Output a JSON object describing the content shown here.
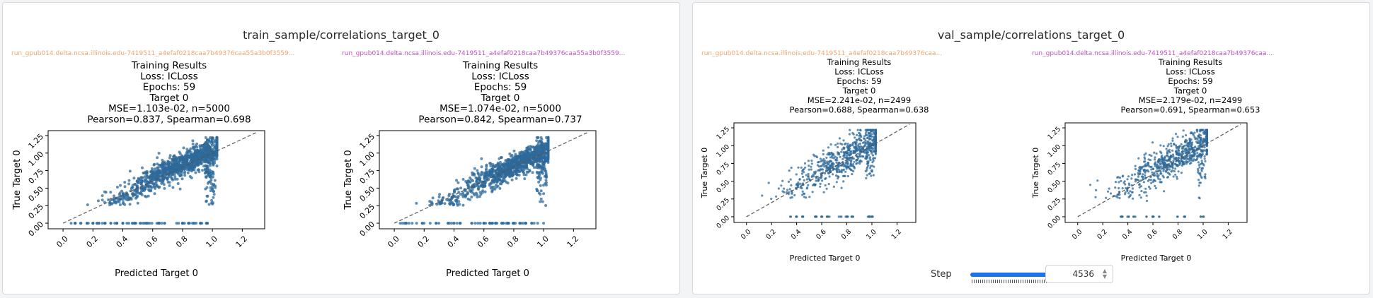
{
  "panels": [
    {
      "title": "train_sample/correlations_target_0",
      "plots": [
        {
          "run_name": "run_gpub014.delta.ncsa.illinois.edu-7419511_a4efaf0218caa7b49376caa55a3b0f3559...",
          "run_color": "#f5a36c",
          "title_lines": [
            "Training Results",
            "Loss: ICLoss",
            "Epochs: 59",
            "Target 0",
            "MSE=1.103e-02, n=5000",
            "Pearson=0.837, Spearman=0.698"
          ]
        },
        {
          "run_name": "run_gpub014.delta.ncsa.illinois.edu-7419511_a4efaf0218caa7b49376caa55a3b0f3559...",
          "run_color": "#c44fc4",
          "title_lines": [
            "Training Results",
            "Loss: ICLoss",
            "Epochs: 59",
            "Target 0",
            "MSE=1.074e-02, n=5000",
            "Pearson=0.842, Spearman=0.737"
          ]
        }
      ]
    },
    {
      "title": "val_sample/correlations_target_0",
      "plots": [
        {
          "run_name": "run_gpub014.delta.ncsa.illinois.edu-7419511_a4efaf0218caa7b49376caa...",
          "run_color": "#f5a36c",
          "title_lines": [
            "Training Results",
            "Loss: ICLoss",
            "Epochs: 59",
            "Target 0",
            "MSE=2.241e-02, n=2499",
            "Pearson=0.688, Spearman=0.638"
          ]
        },
        {
          "run_name": "run_gpub014.delta.ncsa.illinois.edu-7419511_a4efaf0218caa7b49376caa...",
          "run_color": "#c44fc4",
          "title_lines": [
            "Training Results",
            "Loss: ICLoss",
            "Epochs: 59",
            "Target 0",
            "MSE=2.179e-02, n=2499",
            "Pearson=0.691, Spearman=0.653"
          ]
        }
      ]
    }
  ],
  "step": {
    "label": "Step",
    "value": "4536",
    "slider_fraction": 1.0
  },
  "chart_data": [
    {
      "type": "scatter",
      "title": "Training Results / Loss: ICLoss / Epochs: 59 / Target 0 / MSE=1.103e-02, n=5000 / Pearson=0.837, Spearman=0.698",
      "xlabel": "Predicted Target 0",
      "ylabel": "True Target 0",
      "xlim": [
        -0.1,
        1.35
      ],
      "ylim": [
        -0.08,
        1.32
      ],
      "xticks": [
        "0.0",
        "0.2",
        "0.4",
        "0.6",
        "0.8",
        "1.0",
        "1.2"
      ],
      "yticks": [
        "0.00",
        "0.25",
        "0.50",
        "0.75",
        "1.00",
        "1.25"
      ],
      "identity_line": true,
      "n": 5000,
      "marker_color": "#2d6a9a",
      "grid": false
    },
    {
      "type": "scatter",
      "title": "Training Results / Loss: ICLoss / Epochs: 59 / Target 0 / MSE=1.074e-02, n=5000 / Pearson=0.842, Spearman=0.737",
      "xlabel": "Predicted Target 0",
      "ylabel": "True Target 0",
      "xlim": [
        -0.1,
        1.35
      ],
      "ylim": [
        -0.08,
        1.32
      ],
      "xticks": [
        "0.0",
        "0.2",
        "0.4",
        "0.6",
        "0.8",
        "1.0",
        "1.2"
      ],
      "yticks": [
        "0.00",
        "0.25",
        "0.50",
        "0.75",
        "1.00",
        "1.25"
      ],
      "identity_line": true,
      "n": 5000,
      "marker_color": "#2d6a9a",
      "grid": false
    },
    {
      "type": "scatter",
      "title": "Training Results / Loss: ICLoss / Epochs: 59 / Target 0 / MSE=2.241e-02, n=2499 / Pearson=0.688, Spearman=0.638",
      "xlabel": "Predicted Target 0",
      "ylabel": "True Target 0",
      "xlim": [
        -0.1,
        1.35
      ],
      "ylim": [
        -0.08,
        1.32
      ],
      "xticks": [
        "0.0",
        "0.2",
        "0.4",
        "0.6",
        "0.8",
        "1.0",
        "1.2"
      ],
      "yticks": [
        "0.00",
        "0.25",
        "0.50",
        "0.75",
        "1.00",
        "1.25"
      ],
      "identity_line": true,
      "n": 2499,
      "marker_color": "#2d6a9a",
      "grid": false
    },
    {
      "type": "scatter",
      "title": "Training Results / Loss: ICLoss / Epochs: 59 / Target 0 / MSE=2.179e-02, n=2499 / Pearson=0.691, Spearman=0.653",
      "xlabel": "Predicted Target 0",
      "ylabel": "True Target 0",
      "xlim": [
        -0.1,
        1.35
      ],
      "ylim": [
        -0.08,
        1.32
      ],
      "xticks": [
        "0.0",
        "0.2",
        "0.4",
        "0.6",
        "0.8",
        "1.0",
        "1.2"
      ],
      "yticks": [
        "0.00",
        "0.25",
        "0.50",
        "0.75",
        "1.00",
        "1.25"
      ],
      "identity_line": true,
      "n": 2499,
      "marker_color": "#2d6a9a",
      "grid": false
    }
  ]
}
